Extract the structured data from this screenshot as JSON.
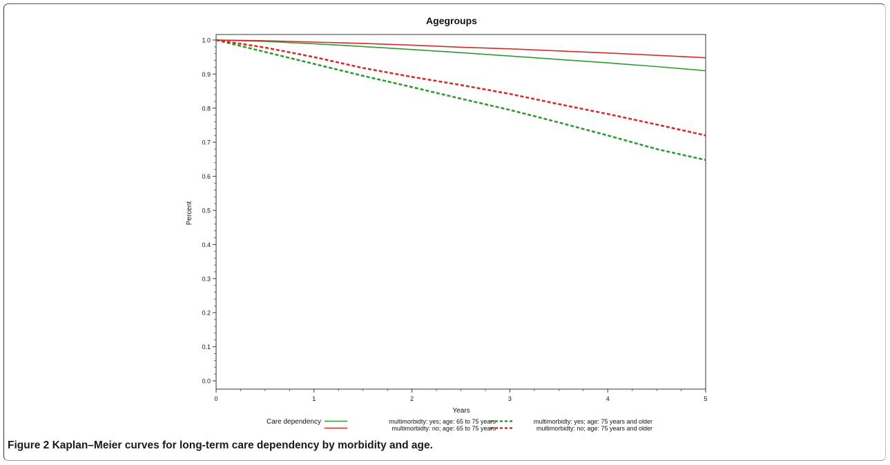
{
  "chart_data": {
    "type": "line",
    "title": "Agegroups",
    "xlabel": "Years",
    "ylabel": "Percent",
    "xlim": [
      0,
      5
    ],
    "ylim": [
      0,
      1
    ],
    "xticks": [
      "0",
      "1",
      "2",
      "3",
      "4",
      "5"
    ],
    "yticks": [
      "0.0",
      "0.1",
      "0.2",
      "0.3",
      "0.4",
      "0.5",
      "0.6",
      "0.7",
      "0.8",
      "0.9",
      "1.0"
    ],
    "legend_title": "Care dependency",
    "legend_position": "bottom",
    "x": [
      0,
      0.5,
      1,
      1.5,
      2,
      2.5,
      3,
      3.5,
      4,
      4.5,
      5
    ],
    "series": [
      {
        "name": "multimorbidty: yes; age: 65 to 75 years",
        "color": "#2e9a2e",
        "style": "solid",
        "values": [
          1.0,
          0.996,
          0.989,
          0.981,
          0.972,
          0.963,
          0.953,
          0.943,
          0.933,
          0.922,
          0.91
        ]
      },
      {
        "name": "multimorbidty: no; age: 65 to 75 years",
        "color": "#d42a2a",
        "style": "solid",
        "values": [
          1.0,
          0.998,
          0.994,
          0.99,
          0.985,
          0.979,
          0.974,
          0.968,
          0.962,
          0.955,
          0.948
        ]
      },
      {
        "name": "multimorbidty: yes; age: 75 years and older",
        "color": "#2e9a2e",
        "style": "dashed",
        "values": [
          1.0,
          0.965,
          0.93,
          0.895,
          0.862,
          0.828,
          0.795,
          0.758,
          0.72,
          0.68,
          0.648
        ]
      },
      {
        "name": "multimorbidty: no; age: 75 years and older",
        "color": "#d42a2a",
        "style": "dashed",
        "values": [
          1.0,
          0.978,
          0.95,
          0.918,
          0.892,
          0.868,
          0.842,
          0.812,
          0.783,
          0.752,
          0.72
        ]
      }
    ]
  },
  "caption": {
    "label": "Figure 2",
    "text": "Kaplan–Meier curves for long-term care dependency by morbidity and age."
  }
}
